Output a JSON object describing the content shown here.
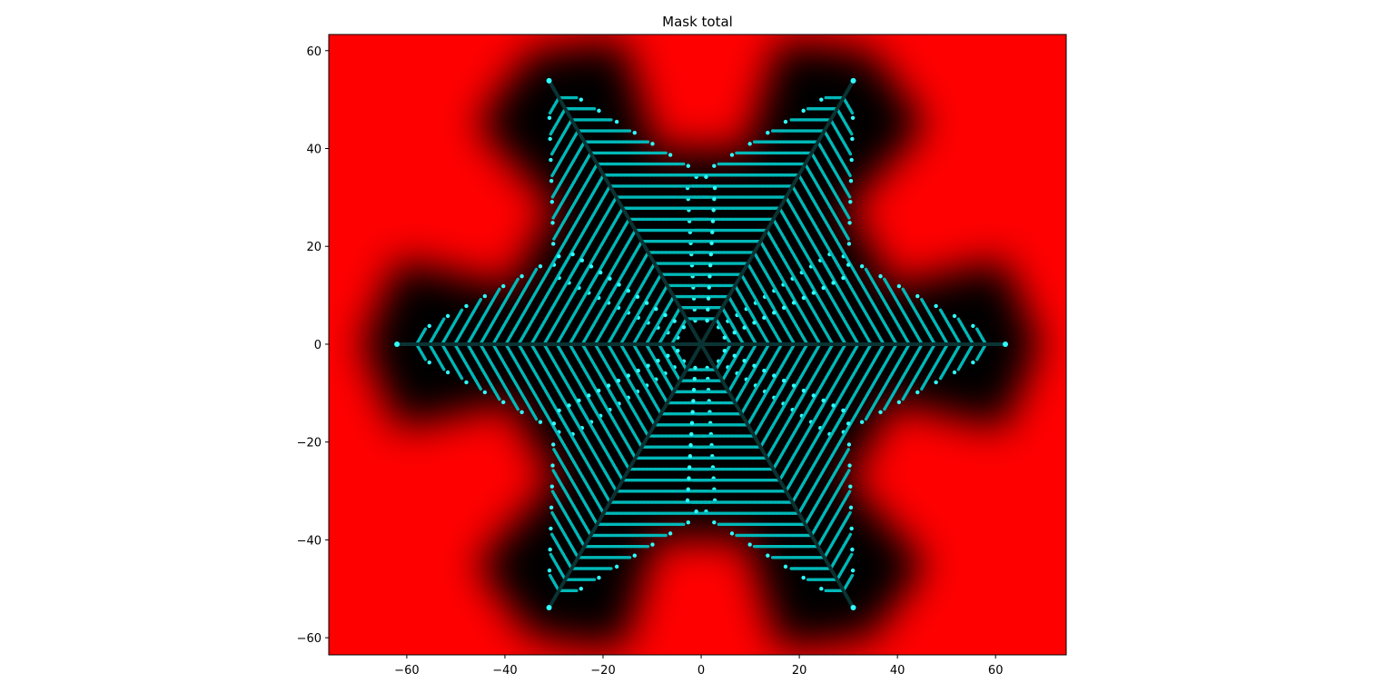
{
  "chart_data": {
    "type": "image",
    "title": "Mask total",
    "xlim": [
      -75.9,
      74.4
    ],
    "ylim": [
      -63.5,
      63.3
    ],
    "xticks": [
      {
        "value": -60,
        "label": "−60"
      },
      {
        "value": -40,
        "label": "−40"
      },
      {
        "value": -20,
        "label": "−20"
      },
      0,
      20,
      40,
      60
    ],
    "yticks": [
      {
        "value": -60,
        "label": "−60"
      },
      {
        "value": -40,
        "label": "−40"
      },
      {
        "value": -20,
        "label": "−20"
      },
      0,
      20,
      40,
      60
    ]
  }
}
